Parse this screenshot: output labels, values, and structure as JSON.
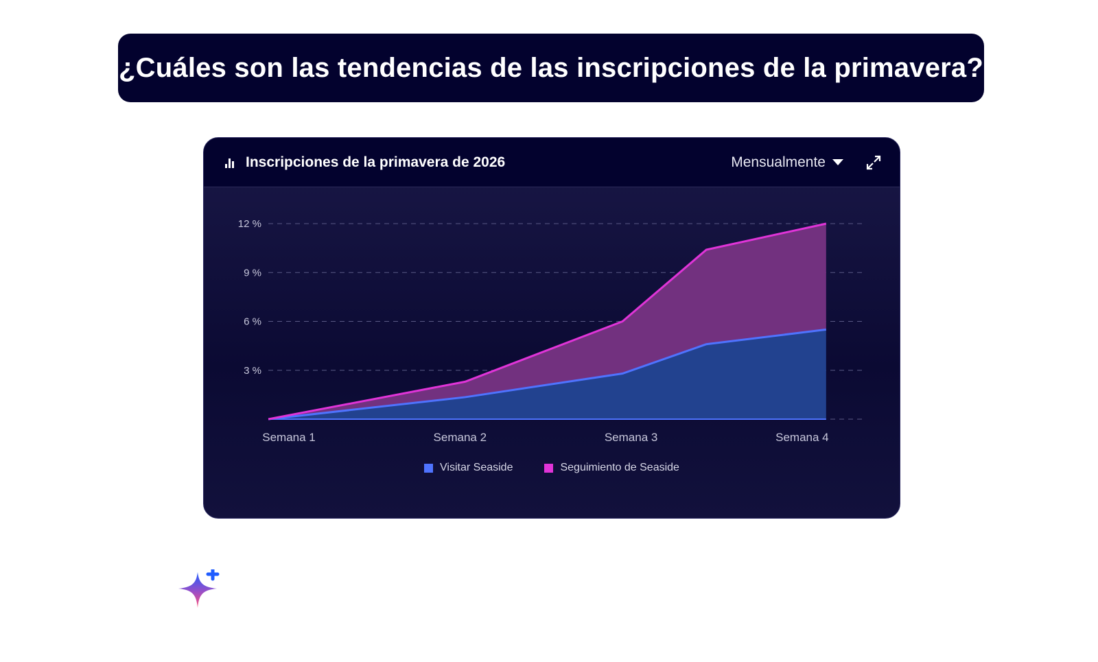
{
  "question": "¿Cuáles son las tendencias de las inscripciones de la primavera?",
  "card": {
    "title": "Inscripciones de la primavera de 2026",
    "period": "Mensualmente",
    "icon": "bar-chart-icon",
    "expand_icon": "expand-icon"
  },
  "colors": {
    "blue_line": "#4f73ff",
    "blue_fill": "#22428f",
    "magenta_line": "#e034d8",
    "magenta_fill": "#72317f"
  },
  "chart_data": {
    "type": "area",
    "stacked": true,
    "title": "Inscripciones de la primavera de 2026",
    "xlabel": "",
    "ylabel": "",
    "x_ticks": [
      {
        "x": 1,
        "label": "Semana 1"
      },
      {
        "x": 2,
        "label": "Semana 2"
      },
      {
        "x": 3,
        "label": "Semana 3"
      },
      {
        "x": 4,
        "label": "Semana 4"
      }
    ],
    "y_ticks": [
      {
        "y": 3,
        "label": "3 %"
      },
      {
        "y": 6,
        "label": "6 %"
      },
      {
        "y": 9,
        "label": "9 %"
      },
      {
        "y": 12,
        "label": "12 %"
      }
    ],
    "ylim": [
      0,
      12
    ],
    "x": [
      0.88,
      2.03,
      2.95,
      3.44,
      4.14
    ],
    "series": [
      {
        "name": "Visitar Seaside",
        "values": [
          0,
          1.35,
          2.8,
          4.6,
          5.5
        ]
      },
      {
        "name": "Seguimiento de Seaside",
        "values": [
          0,
          0.95,
          3.2,
          5.8,
          6.5
        ]
      }
    ],
    "grid": true,
    "legend": "bottom-center"
  }
}
